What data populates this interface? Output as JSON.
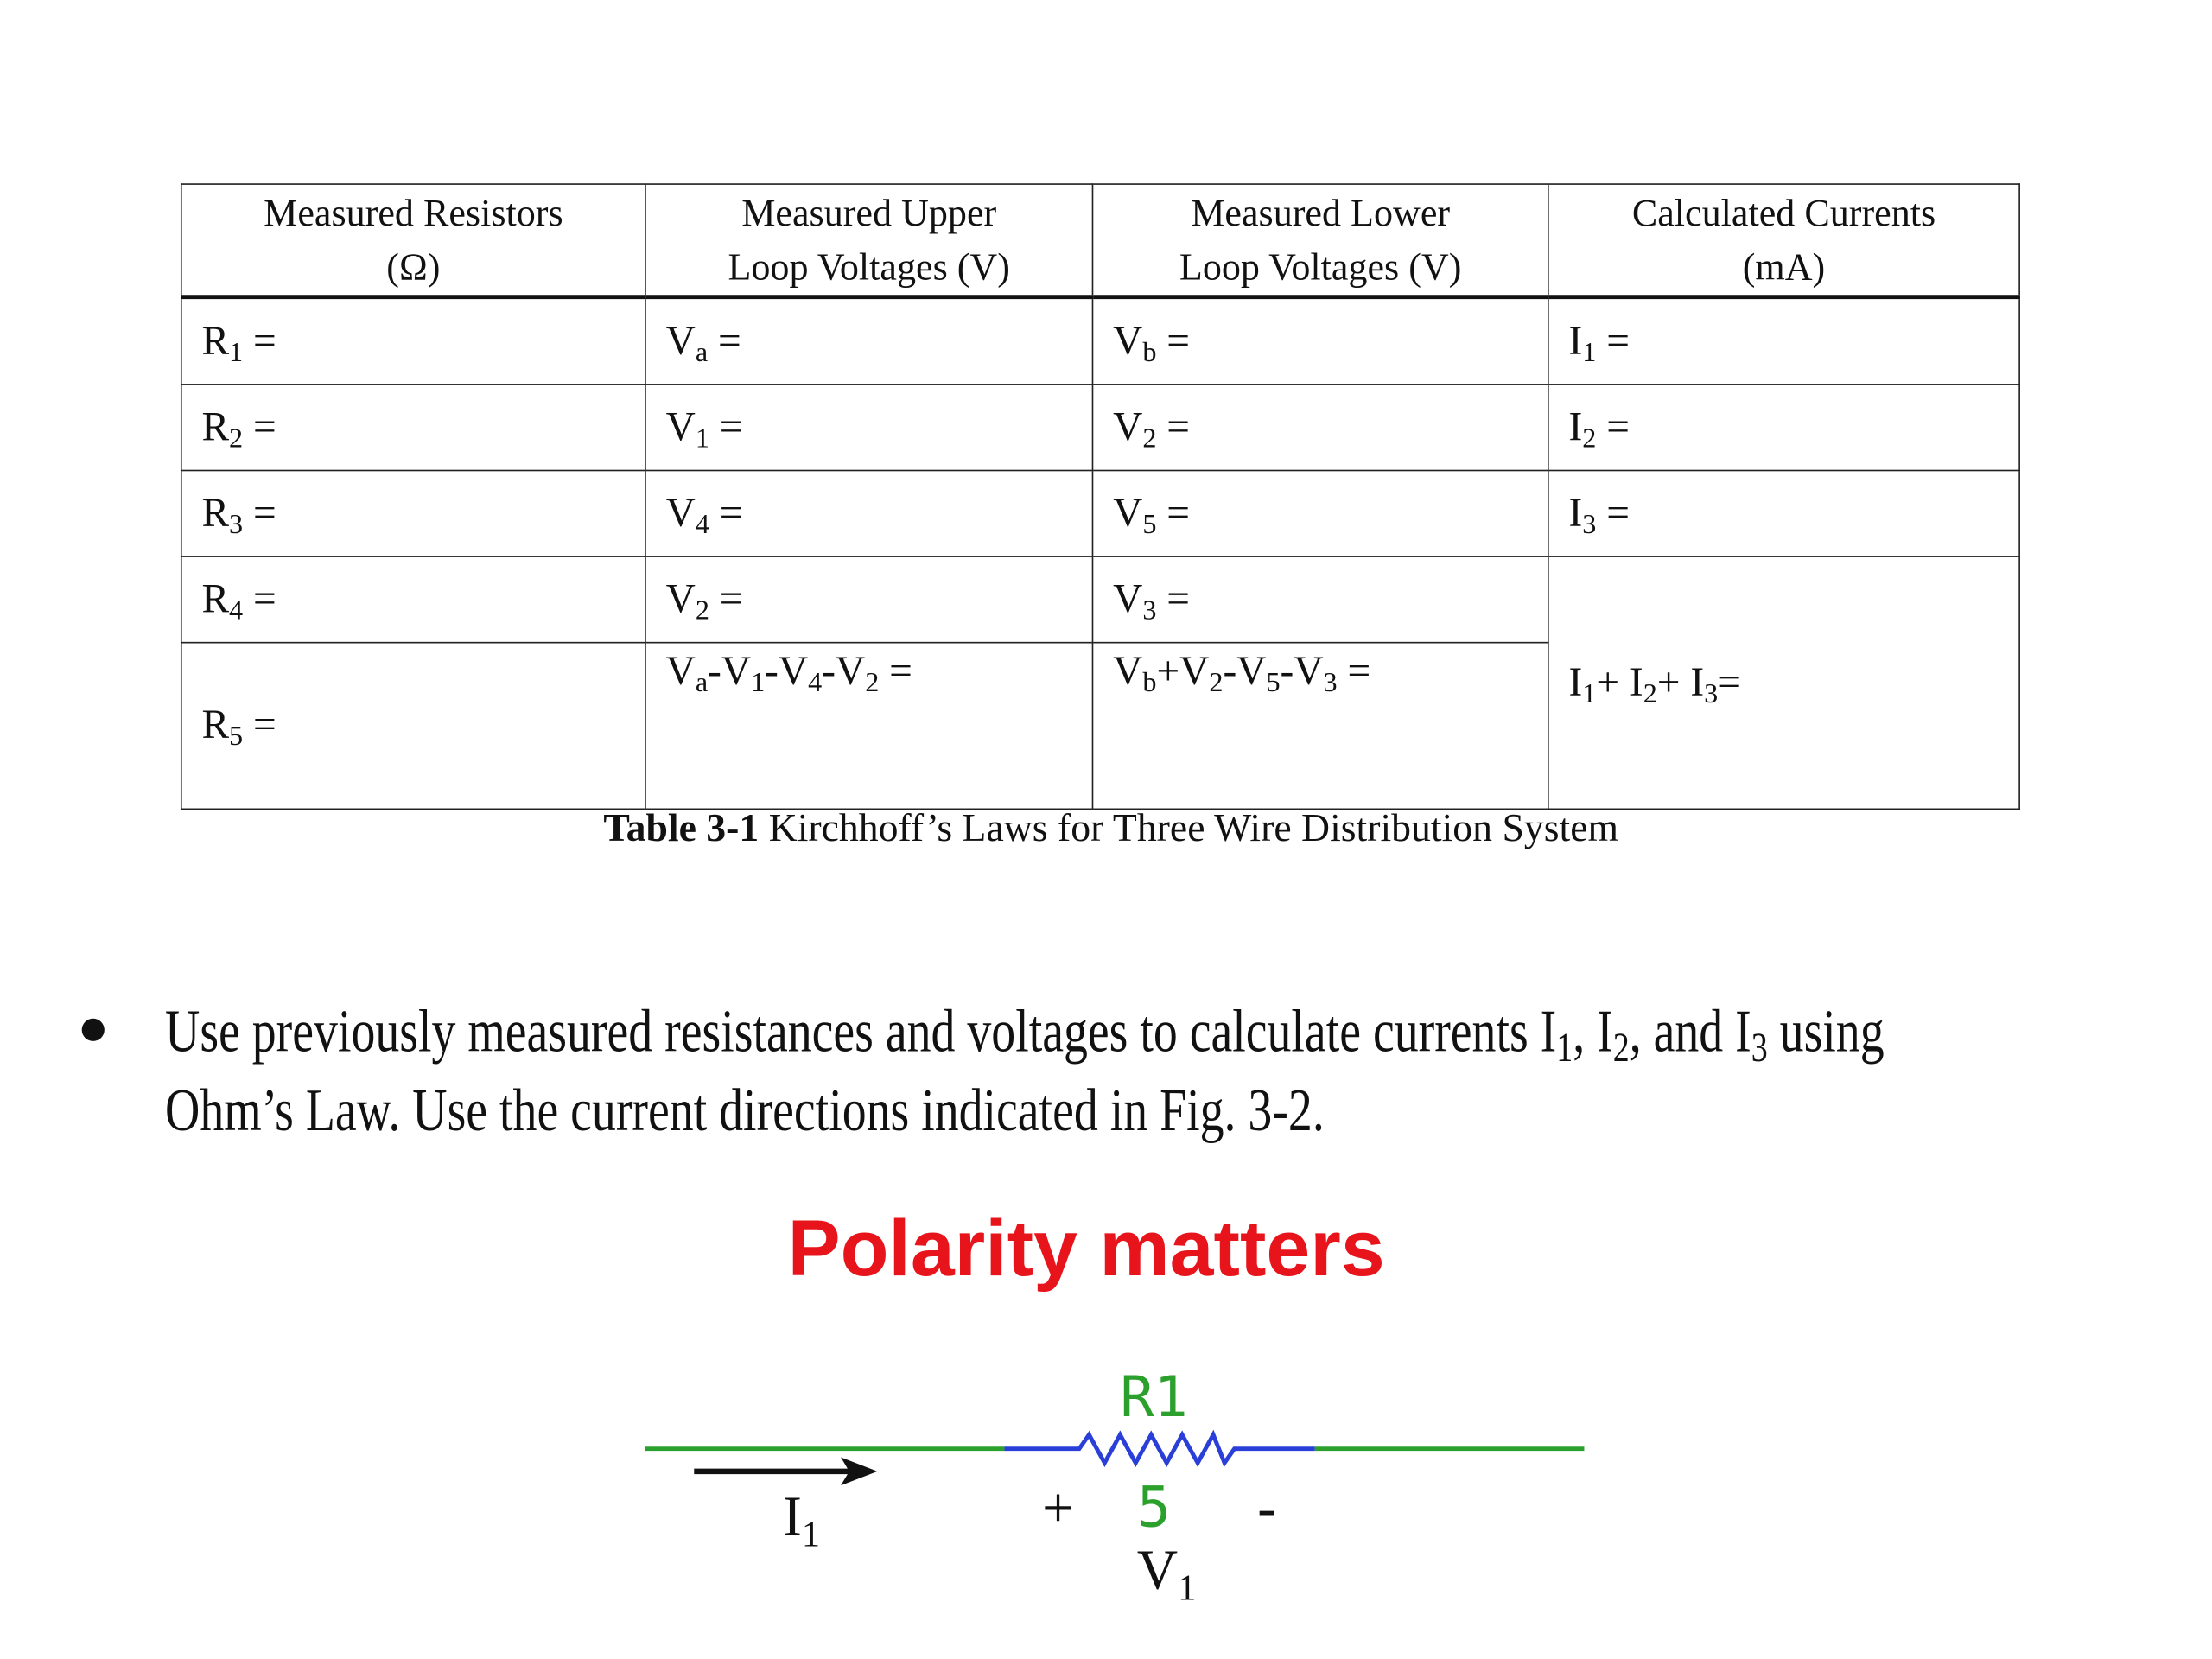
{
  "table": {
    "header": [
      [
        "Measured Resistors",
        "(Ω)"
      ],
      [
        "Measured Upper",
        "Loop Voltages (V)"
      ],
      [
        "Measured Lower",
        "Loop Voltages (V)"
      ],
      [
        "Calculated Currents",
        "(mA)"
      ]
    ],
    "rows": [
      [
        [
          {
            "text": "R"
          },
          {
            "sub": "1"
          },
          {
            "text": " ="
          }
        ],
        [
          {
            "text": "V"
          },
          {
            "sub": "a"
          },
          {
            "text": " ="
          }
        ],
        [
          {
            "text": "V"
          },
          {
            "sub": "b"
          },
          {
            "text": " ="
          }
        ],
        [
          {
            "text": "I"
          },
          {
            "sub": "1"
          },
          {
            "text": " ="
          }
        ]
      ],
      [
        [
          {
            "text": "R"
          },
          {
            "sub": "2"
          },
          {
            "text": " ="
          }
        ],
        [
          {
            "text": "V"
          },
          {
            "sub": "1"
          },
          {
            "text": " ="
          }
        ],
        [
          {
            "text": "V"
          },
          {
            "sub": "2"
          },
          {
            "text": " ="
          }
        ],
        [
          {
            "text": "I"
          },
          {
            "sub": "2"
          },
          {
            "text": " ="
          }
        ]
      ],
      [
        [
          {
            "text": "R"
          },
          {
            "sub": "3"
          },
          {
            "text": " ="
          }
        ],
        [
          {
            "text": "V"
          },
          {
            "sub": "4"
          },
          {
            "text": " ="
          }
        ],
        [
          {
            "text": "V"
          },
          {
            "sub": "5"
          },
          {
            "text": " ="
          }
        ],
        [
          {
            "text": "I"
          },
          {
            "sub": "3"
          },
          {
            "text": " ="
          }
        ]
      ],
      [
        [
          {
            "text": "R"
          },
          {
            "sub": "4"
          },
          {
            "text": " ="
          }
        ],
        [
          {
            "text": "V"
          },
          {
            "sub": "2"
          },
          {
            "text": " ="
          }
        ],
        [
          {
            "text": "V"
          },
          {
            "sub": "3"
          },
          {
            "text": " ="
          }
        ],
        [
          {
            "text": "I"
          },
          {
            "sub": "1"
          },
          {
            "text": "+ I"
          },
          {
            "sub": "2"
          },
          {
            "text": "+ I"
          },
          {
            "sub": "3"
          },
          {
            "text": "="
          }
        ]
      ],
      [
        [
          {
            "text": "R"
          },
          {
            "sub": "5"
          },
          {
            "text": " ="
          }
        ],
        [
          {
            "text": "V"
          },
          {
            "sub": "a"
          },
          {
            "text": "-V"
          },
          {
            "sub": "1"
          },
          {
            "text": "-V"
          },
          {
            "sub": "4"
          },
          {
            "text": "-V"
          },
          {
            "sub": "2"
          },
          {
            "text": " ="
          }
        ],
        [
          {
            "text": "V"
          },
          {
            "sub": "b"
          },
          {
            "text": "+V"
          },
          {
            "sub": "2"
          },
          {
            "text": "-V"
          },
          {
            "sub": "5"
          },
          {
            "text": "-V"
          },
          {
            "sub": "3"
          },
          {
            "text": " ="
          }
        ]
      ]
    ],
    "caption": {
      "label": "Table 3-1",
      "text": " Kirchhoff’s Laws for Three Wire Distribution System"
    }
  },
  "bullet": {
    "lines": [
      [
        {
          "text": "Use previously measured resistances and voltages to calculate currents I"
        },
        {
          "sub": "1"
        },
        {
          "text": ", I"
        },
        {
          "sub": "2"
        },
        {
          "text": ", and I"
        },
        {
          "sub": "3"
        },
        {
          "text": " using"
        }
      ],
      [
        {
          "text": "Ohm’s Law. Use the current directions indicated in Fig. 3-2."
        }
      ]
    ]
  },
  "heading": "Polarity matters",
  "circuit": {
    "resistor_name": "R1",
    "resistor_value": "5",
    "plus": "+",
    "minus": "-",
    "voltage": [
      {
        "text": "V"
      },
      {
        "sub": "1"
      }
    ],
    "current": [
      {
        "text": "I"
      },
      {
        "sub": "1"
      }
    ]
  }
}
